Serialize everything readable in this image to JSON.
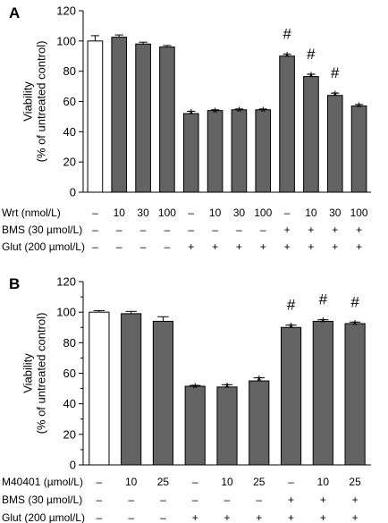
{
  "chart_data": [
    {
      "type": "bar",
      "panel": "A",
      "ylabel_lines": [
        "Viability",
        "(% of untreated control)"
      ],
      "ylim": [
        0,
        120
      ],
      "yticks": [
        "0",
        "20",
        "40",
        "60",
        "80",
        "100",
        "120"
      ],
      "values": [
        100,
        102.5,
        98,
        96,
        52,
        54,
        54.5,
        54.5,
        90,
        76.5,
        64,
        57
      ],
      "errors": [
        3.5,
        1.5,
        1.2,
        1,
        1.5,
        0.5,
        0.5,
        0.5,
        1.2,
        1.5,
        1.5,
        1
      ],
      "bar_colors": [
        "#ffffff",
        "#636363",
        "#636363",
        "#636363",
        "#636363",
        "#636363",
        "#636363",
        "#636363",
        "#636363",
        "#636363",
        "#636363",
        "#636363"
      ],
      "star": [
        false,
        false,
        false,
        false,
        true,
        true,
        true,
        true,
        true,
        true,
        true,
        true
      ],
      "hash": [
        false,
        false,
        false,
        false,
        false,
        false,
        false,
        false,
        true,
        true,
        true,
        false
      ],
      "conditions": [
        {
          "label": "Wrt (nmol/L)",
          "values": [
            "–",
            "10",
            "30",
            "100",
            "–",
            "10",
            "30",
            "100",
            "–",
            "10",
            "30",
            "100"
          ]
        },
        {
          "label": "BMS (30 µmol/L)",
          "values": [
            "–",
            "–",
            "–",
            "–",
            "–",
            "–",
            "–",
            "–",
            "+",
            "+",
            "+",
            "+"
          ]
        },
        {
          "label": "Glut (200 µmol/L)",
          "values": [
            "–",
            "–",
            "–",
            "–",
            "+",
            "+",
            "+",
            "+",
            "+",
            "+",
            "+",
            "+"
          ]
        }
      ]
    },
    {
      "type": "bar",
      "panel": "B",
      "ylabel_lines": [
        "Viability",
        "(% of untreated control)"
      ],
      "ylim": [
        0,
        120
      ],
      "yticks": [
        "0",
        "10",
        "20",
        "30",
        "40",
        "50",
        "60",
        "70",
        "80",
        "90",
        "100",
        "110",
        "120"
      ],
      "values": [
        100,
        99,
        94,
        51.5,
        51,
        55,
        90,
        94,
        92.5
      ],
      "errors": [
        1,
        1.5,
        3,
        0.5,
        1.5,
        2,
        1.5,
        1,
        1
      ],
      "bar_colors": [
        "#ffffff",
        "#636363",
        "#636363",
        "#636363",
        "#636363",
        "#636363",
        "#636363",
        "#636363",
        "#636363"
      ],
      "star": [
        false,
        false,
        false,
        true,
        true,
        true,
        true,
        true,
        true
      ],
      "hash": [
        false,
        false,
        false,
        false,
        false,
        false,
        true,
        true,
        true
      ],
      "conditions": [
        {
          "label": "M40401 (µmol/L)",
          "values": [
            "–",
            "10",
            "25",
            "–",
            "10",
            "25",
            "–",
            "10",
            "25"
          ]
        },
        {
          "label": "BMS (30 µmol/L)",
          "values": [
            "–",
            "–",
            "–",
            "–",
            "–",
            "–",
            "+",
            "+",
            "+"
          ]
        },
        {
          "label": "Glut (200 µmol/L)",
          "values": [
            "–",
            "–",
            "–",
            "+",
            "+",
            "+",
            "+",
            "+",
            "+"
          ]
        }
      ]
    }
  ],
  "symbols": {
    "star": "*",
    "hash": "#"
  }
}
